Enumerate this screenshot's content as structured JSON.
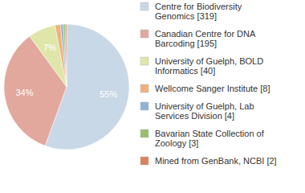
{
  "chart_data": {
    "type": "pie",
    "categories": [
      "Centre for Biodiversity Genomics [319]",
      "Canadian Centre for DNA Barcoding [195]",
      "University of Guelph, BOLD Informatics [40]",
      "Wellcome Sanger Institute [8]",
      "University of Guelph, Lab Services Division [4]",
      "Bavarian State Collection of Zoology [3]",
      "Mined from GenBank, NCBI [2]"
    ],
    "values": [
      55,
      34,
      7,
      1.4,
      0.7,
      0.5,
      0.35
    ],
    "value_labels": [
      "55%",
      "34%",
      "7%",
      null,
      null,
      null,
      null
    ],
    "colors": [
      "#c9d8e6",
      "#e2a89e",
      "#dfe6a9",
      "#f0b27d",
      "#8fb2d6",
      "#98c06e",
      "#d9825e"
    ],
    "data_labels": true,
    "legend": "right"
  }
}
